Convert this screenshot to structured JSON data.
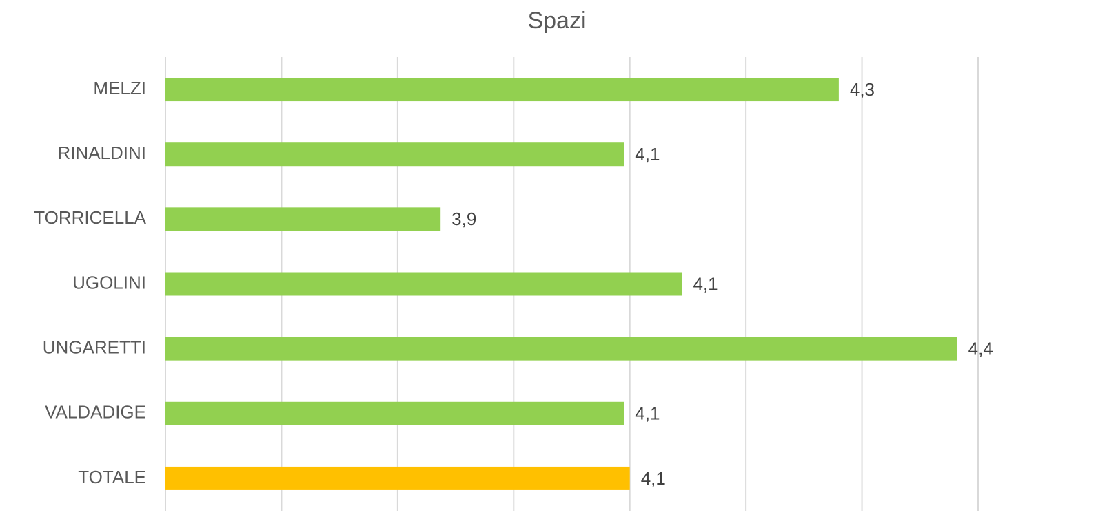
{
  "chart_data": {
    "type": "barh",
    "title": "Spazi",
    "categories": [
      "MELZI",
      "RINALDINI",
      "TORRICELLA",
      "UGOLINI",
      "UNGARETTI",
      "VALDADIGE",
      "TOTALE"
    ],
    "values": [
      4.28,
      4.095,
      3.937,
      4.145,
      4.382,
      4.095,
      4.1
    ],
    "value_labels": [
      "4,3",
      "4,1",
      "3,9",
      "4,1",
      "4,4",
      "4,1",
      "4,1"
    ],
    "colors": [
      "#92d050",
      "#92d050",
      "#92d050",
      "#92d050",
      "#92d050",
      "#92d050",
      "#ffc000"
    ],
    "xlim": [
      3.7,
      4.4
    ],
    "xticks": [
      3.7,
      3.8,
      3.9,
      4.0,
      4.1,
      4.2,
      4.3,
      4.4
    ],
    "grid": true
  }
}
